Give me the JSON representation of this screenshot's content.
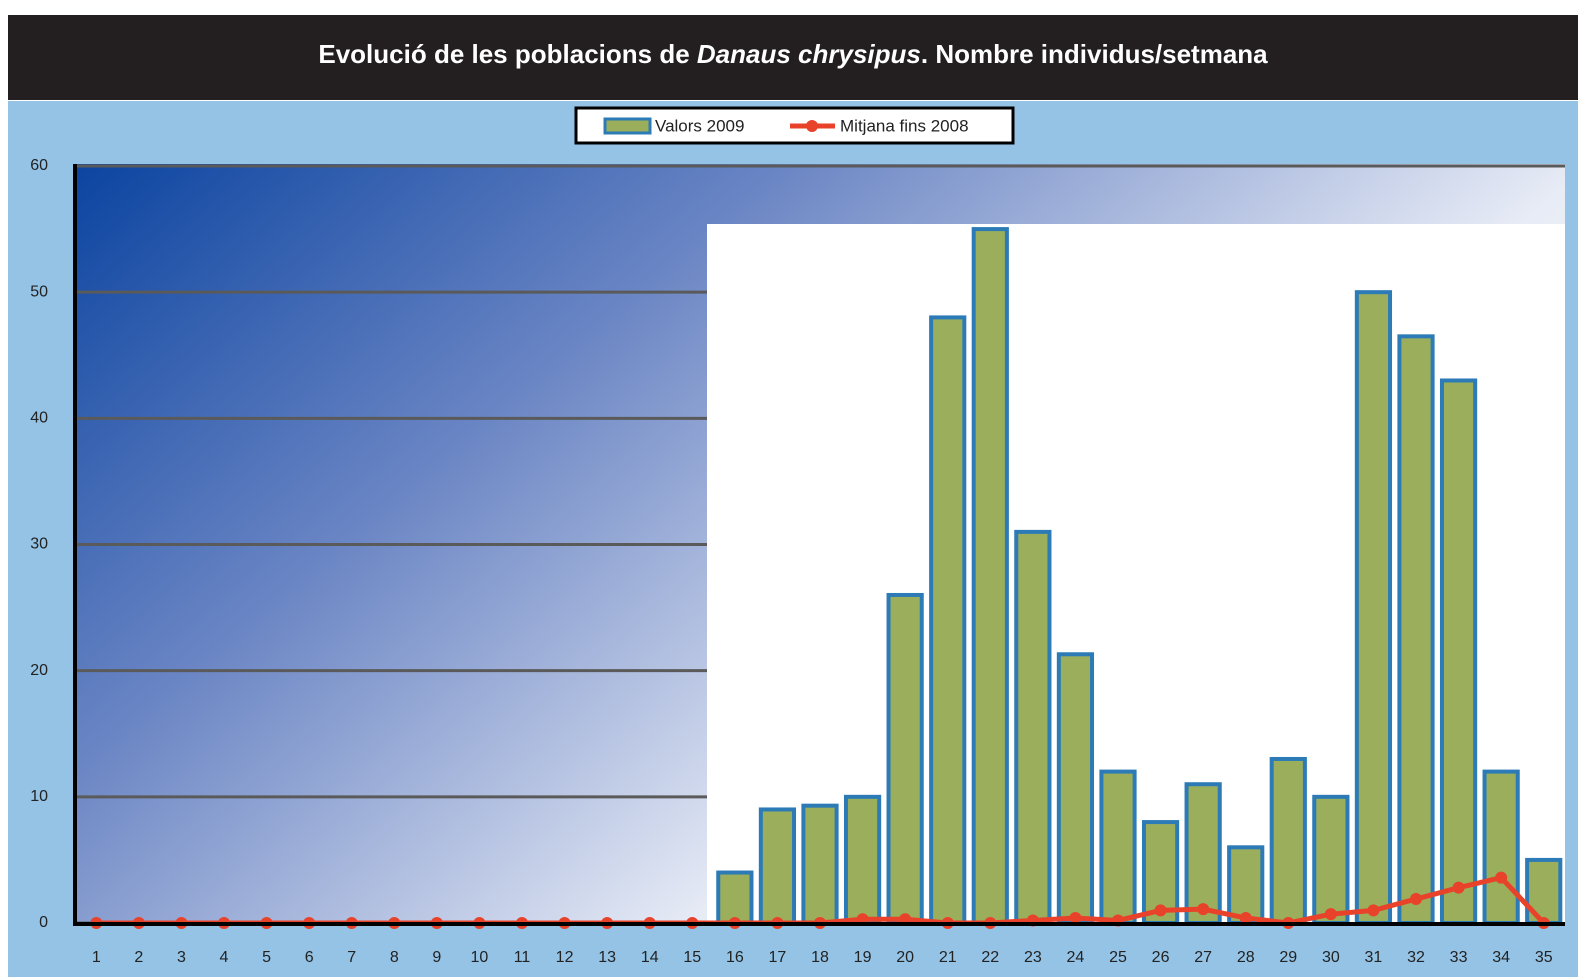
{
  "chart_data": {
    "type": "bar",
    "title": [
      "Evolució de les poblacions de ",
      "Danaus chrysipus",
      ". Nombre individus/setmana"
    ],
    "categories": [
      "1",
      "2",
      "3",
      "4",
      "5",
      "6",
      "7",
      "8",
      "9",
      "10",
      "11",
      "12",
      "13",
      "14",
      "15",
      "16",
      "17",
      "18",
      "19",
      "20",
      "21",
      "22",
      "23",
      "24",
      "25",
      "26",
      "27",
      "28",
      "29",
      "30",
      "31",
      "32",
      "33",
      "34",
      "35"
    ],
    "series": [
      {
        "name": "Valors 2009",
        "type": "bar",
        "color": "#9aae5c",
        "edge_color": "#2c7bb6",
        "values": [
          0,
          0,
          0,
          0,
          0,
          0,
          0,
          0,
          0,
          0,
          0,
          0,
          0,
          0,
          0,
          4,
          9,
          9.3,
          10,
          26,
          48,
          55,
          31,
          21.3,
          12,
          8,
          11,
          6,
          13,
          10,
          50,
          46.5,
          43,
          12,
          5
        ]
      },
      {
        "name": "Mitjana fins 2008",
        "type": "line",
        "color": "#e8432a",
        "values": [
          0,
          0,
          0,
          0,
          0,
          0,
          0,
          0,
          0,
          0,
          0,
          0,
          0,
          0,
          0,
          0,
          0,
          0,
          0.3,
          0.3,
          0,
          0,
          0.2,
          0.4,
          0.2,
          1,
          1.1,
          0.4,
          0,
          0.7,
          1,
          1.9,
          2.8,
          3.6,
          0
        ]
      }
    ],
    "ylim": [
      0,
      60
    ],
    "yticks": [
      0,
      10,
      20,
      30,
      40,
      50,
      60
    ],
    "grid": true,
    "legend": "top"
  }
}
